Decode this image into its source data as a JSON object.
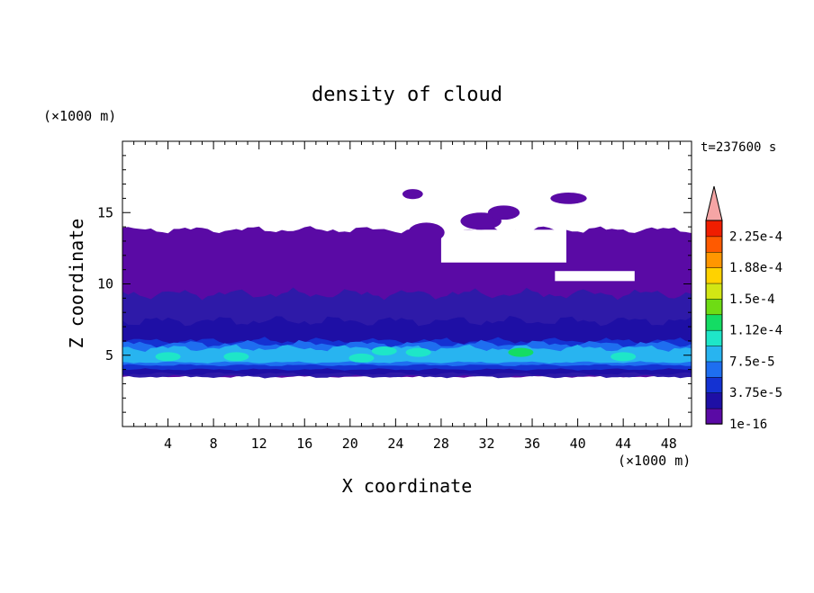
{
  "chart_data": {
    "type": "heatmap",
    "title": "density of cloud",
    "xlabel": "X coordinate",
    "ylabel": "Z coordinate",
    "x_unit": "(×1000 m)",
    "y_unit": "(×1000 m)",
    "time_label": "t=237600 s",
    "xlim": [
      0,
      50
    ],
    "ylim": [
      0,
      20
    ],
    "xticks": [
      4,
      8,
      12,
      16,
      20,
      24,
      28,
      32,
      36,
      40,
      44,
      48
    ],
    "yticks": [
      5,
      10,
      15
    ],
    "grid": false,
    "colorbar": {
      "labels": [
        "1e-16",
        "3.75e-5",
        "7.5e-5",
        "1.12e-4",
        "1.5e-4",
        "1.88e-4",
        "2.25e-4"
      ],
      "colors": [
        "#5a0aa5",
        "#1e0fa5",
        "#1432d2",
        "#1e6ef0",
        "#28b4f0",
        "#1ee6c8",
        "#14dc64",
        "#6edc14",
        "#d2e614",
        "#ffd200",
        "#ff9600",
        "#ff5a00",
        "#f01e00"
      ],
      "extend_top_color": "#f5a5a5"
    },
    "layers": [
      {
        "name": "deck",
        "z_bottom": 3.5,
        "z_top": 13.8,
        "color": "#5a0aa5"
      },
      {
        "name": "mid",
        "z_bottom": 3.5,
        "z_top": 9.3,
        "color": "#2e1aa8"
      },
      {
        "name": "low",
        "z_bottom": 3.7,
        "z_top": 7.4,
        "color": "#1e0fa5"
      },
      {
        "name": "core",
        "z_bottom": 4.0,
        "z_top": 6.0,
        "color": "#1432d2"
      },
      {
        "name": "bright",
        "z_bottom": 4.3,
        "z_top": 5.8,
        "color": "#1e6ef0"
      },
      {
        "name": "peak",
        "z_bottom": 4.5,
        "z_top": 5.5,
        "color": "#28b4f0"
      }
    ],
    "clear_patches": [
      {
        "x": [
          28,
          39
        ],
        "z": [
          11.5,
          13.8
        ]
      },
      {
        "x": [
          38,
          45
        ],
        "z": [
          10.2,
          10.9
        ]
      }
    ],
    "isolated_cells": [
      {
        "x": 25.5,
        "z": 16.3,
        "rx": 0.9,
        "rz": 0.35
      },
      {
        "x": 26.7,
        "z": 13.6,
        "rx": 1.6,
        "rz": 0.7
      },
      {
        "x": 31.5,
        "z": 14.4,
        "rx": 1.8,
        "rz": 0.6
      },
      {
        "x": 33.5,
        "z": 15.0,
        "rx": 1.4,
        "rz": 0.5
      },
      {
        "x": 39.2,
        "z": 16.0,
        "rx": 1.6,
        "rz": 0.4
      }
    ],
    "hotspots": [
      {
        "x": 4.0,
        "z": 4.9,
        "color": "#1ee6c8"
      },
      {
        "x": 10.0,
        "z": 4.9,
        "color": "#1ee6c8"
      },
      {
        "x": 21.0,
        "z": 4.8,
        "color": "#1ee6c8"
      },
      {
        "x": 23.0,
        "z": 5.3,
        "color": "#1ee6c8"
      },
      {
        "x": 26.0,
        "z": 5.2,
        "color": "#1ee6c8"
      },
      {
        "x": 35.0,
        "z": 5.2,
        "color": "#14dc64"
      },
      {
        "x": 44.0,
        "z": 4.9,
        "color": "#1ee6c8"
      }
    ]
  }
}
